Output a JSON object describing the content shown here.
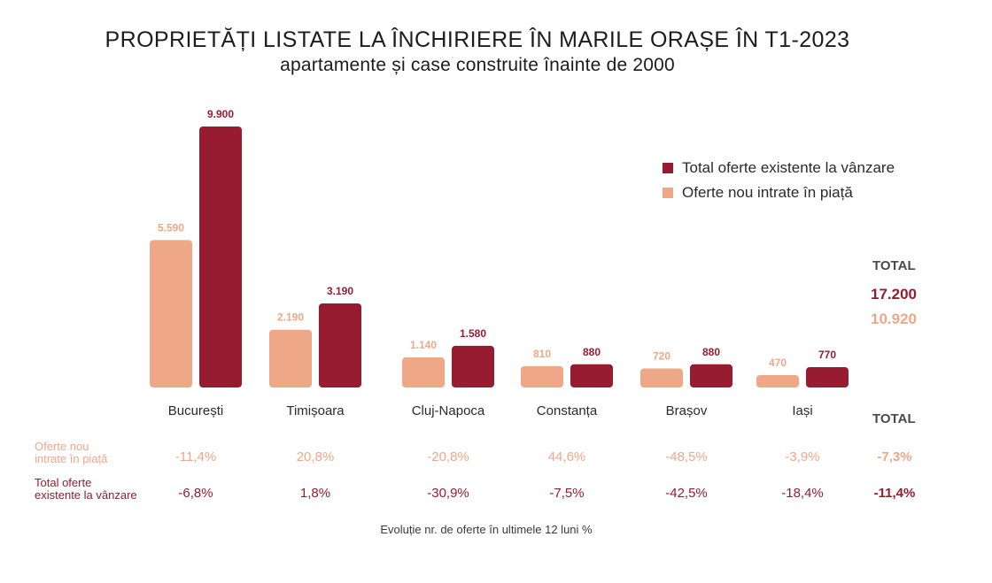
{
  "header": {
    "title": "PROPRIETĂȚI LISTATE LA ÎNCHIRIERE ÎN MARILE ORAȘE ÎN T1-2023",
    "subtitle": "apartamente și case construite înainte de 2000"
  },
  "colors": {
    "new": "#eea888",
    "total": "#971c30",
    "text": "#1c1c1c"
  },
  "legend": {
    "total": "Total oferte existente la vânzare",
    "new": "Oferte nou intrate în piață"
  },
  "totals": {
    "label_top": "TOTAL",
    "total_value": "17.200",
    "new_value": "10.920",
    "label_table": "TOTAL"
  },
  "chart_data": {
    "type": "bar",
    "categories": [
      "București",
      "Timișoara",
      "Cluj-Napoca",
      "Constanța",
      "Brașov",
      "Iași"
    ],
    "series": [
      {
        "name": "Oferte nou intrate în piață",
        "values": [
          5590,
          2190,
          1140,
          810,
          720,
          470
        ],
        "labels": [
          "5.590",
          "2.190",
          "1.140",
          "810",
          "720",
          "470"
        ]
      },
      {
        "name": "Total oferte existente la vânzare",
        "values": [
          9900,
          3190,
          1580,
          880,
          880,
          770
        ],
        "labels": [
          "9.900",
          "3.190",
          "1.580",
          "880",
          "880",
          "770"
        ]
      }
    ]
  },
  "table": {
    "rows": [
      {
        "label_line1": "Oferte nou",
        "label_line2": "intrate în piață",
        "values": [
          "-11,4%",
          "20,8%",
          "-20,8%",
          "44,6%",
          "-48,5%",
          "-3,9%"
        ],
        "total": "-7,3%"
      },
      {
        "label_line1": "Total oferte",
        "label_line2": "existente la vânzare",
        "values": [
          "-6,8%",
          "1,8%",
          "-30,9%",
          "-7,5%",
          "-42,5%",
          "-18,4%"
        ],
        "total": "-11,4%"
      }
    ],
    "footnote": "Evoluție nr. de oferte în ultimele 12 luni %"
  }
}
